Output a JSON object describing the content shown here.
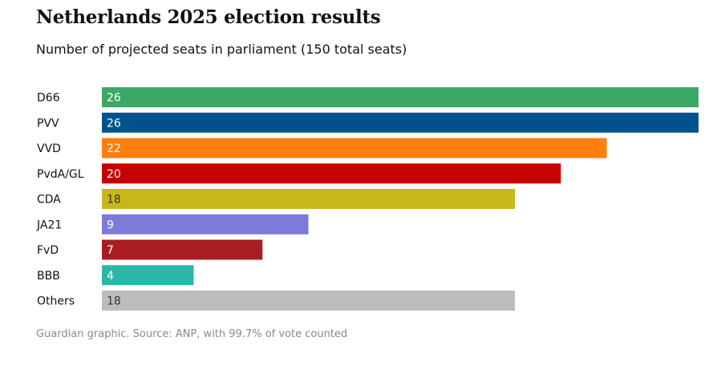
{
  "chart_data": {
    "type": "bar",
    "orientation": "horizontal",
    "title": "Netherlands 2025 election results",
    "subtitle": "Number of projected seats in parliament (150 total seats)",
    "source": "Guardian graphic. Source: ANP, with 99.7% of vote counted",
    "categories": [
      "D66",
      "PVV",
      "VVD",
      "PvdA/GL",
      "CDA",
      "JA21",
      "FvD",
      "BBB",
      "Others"
    ],
    "values": [
      26,
      26,
      22,
      20,
      18,
      9,
      7,
      4,
      18
    ],
    "colors": [
      "#3ba865",
      "#00538a",
      "#ff7f0e",
      "#c70000",
      "#c7b71a",
      "#7c7bd9",
      "#a81c22",
      "#2ab7a9",
      "#bdbdbd"
    ],
    "value_label_colors": [
      "#ffffff",
      "#ffffff",
      "#ffffff",
      "#ffffff",
      "#333333",
      "#ffffff",
      "#ffffff",
      "#ffffff",
      "#333333"
    ],
    "xlim": [
      0,
      26
    ],
    "grid": false,
    "legend": "none"
  }
}
